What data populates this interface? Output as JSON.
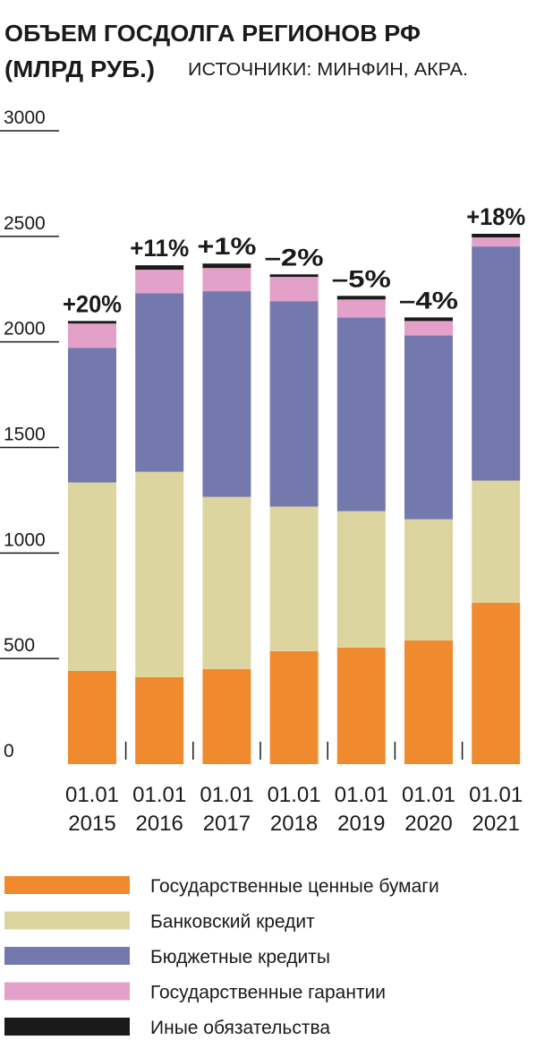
{
  "chart_data": {
    "type": "stacked-bar",
    "title": "ОБЪЕМ ГОСДОЛГА РЕГИОНОВ РФ",
    "subtitle": "(МЛРД РУБ.)",
    "source": "ИСТОЧНИКИ: МИНФИН, АКРА.",
    "categories": [
      "01.01 2015",
      "01.01 2016",
      "01.01 2017",
      "01.01 2018",
      "01.01 2019",
      "01.01 2020",
      "01.01 2021"
    ],
    "annotations": [
      "+20%",
      "+11%",
      "+1%",
      "–2%",
      "–5%",
      "–4%",
      "+18%"
    ],
    "series": [
      {
        "name": "Государственные ценные бумаги",
        "color": "#ef8a2e",
        "values": [
          442,
          412,
          450,
          535,
          552,
          586,
          765
        ]
      },
      {
        "name": "Банковский кредит",
        "color": "#ddd59f",
        "values": [
          892,
          973,
          816,
          685,
          646,
          574,
          578
        ]
      },
      {
        "name": "Бюджетные кредиты",
        "color": "#7479ad",
        "values": [
          638,
          846,
          974,
          973,
          918,
          871,
          1109
        ]
      },
      {
        "name": "Государственные гарантии",
        "color": "#e3a0c8",
        "values": [
          115,
          111,
          110,
          115,
          85,
          68,
          43
        ]
      },
      {
        "name": "Иные обязательства",
        "color": "#1a1a1a",
        "values": [
          12,
          21,
          21,
          12,
          17,
          17,
          17
        ]
      }
    ],
    "ylim": [
      0,
      3000
    ],
    "yticks": [
      0,
      500,
      1000,
      1500,
      2000,
      2500,
      3000
    ]
  }
}
